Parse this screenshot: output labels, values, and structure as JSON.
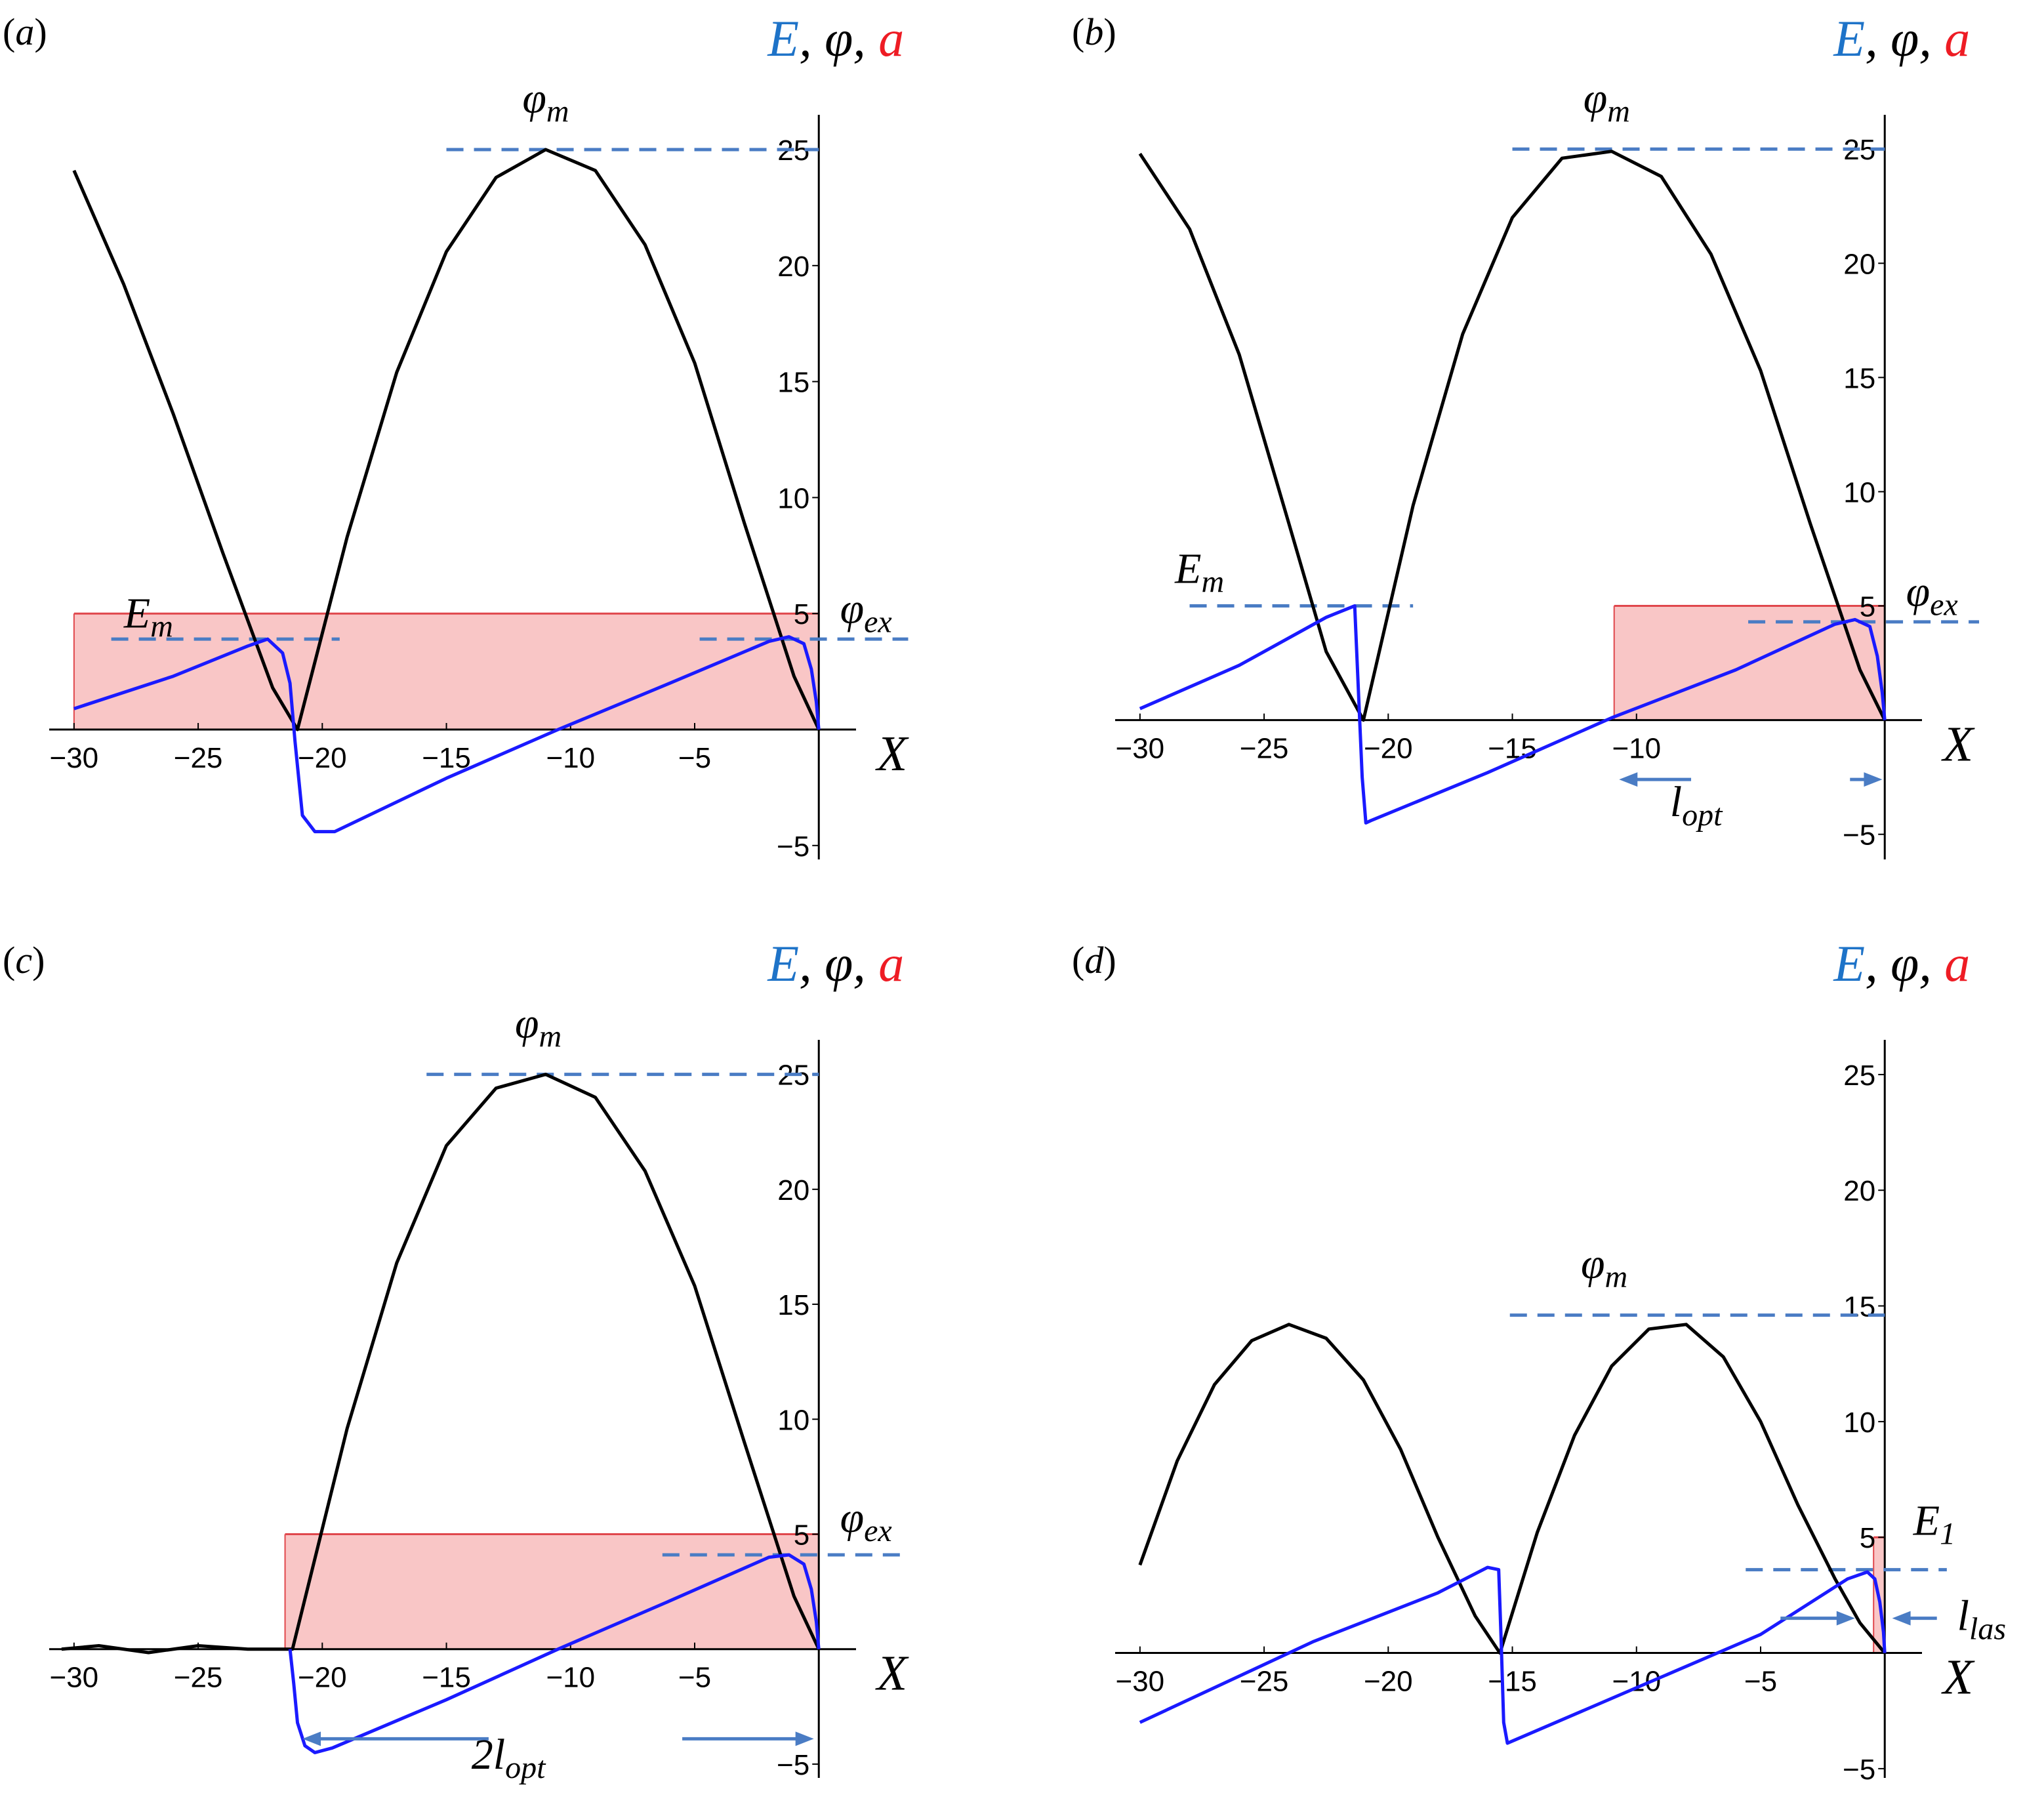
{
  "figure": {
    "colors": {
      "E": "#1a1aff",
      "phi": "#000000",
      "a_fill": "#f9c6c6",
      "a_line": "#e0474c",
      "dashed": "#4a7cc4",
      "ylabel_E": "#1e73c8",
      "ylabel_a": "#ee1c24"
    }
  },
  "chart_data": [
    {
      "panel": "(a)",
      "panel_letter": "a",
      "type": "line",
      "xlabel": "X",
      "ylabel_parts": [
        "E",
        ", φ, ",
        "a"
      ],
      "xlim": [
        -31,
        1.5
      ],
      "ylim": [
        -5.6,
        26.5
      ],
      "xticks": [
        -30,
        -25,
        -20,
        -15,
        -10,
        -5
      ],
      "yticks": [
        -5,
        5,
        10,
        15,
        20,
        25
      ],
      "series": [
        {
          "key": "phi",
          "x": [
            -30,
            -28,
            -26,
            -24,
            -22,
            -21,
            -19,
            -17,
            -15,
            -13,
            -11,
            -9,
            -7,
            -5,
            -3,
            -1,
            0
          ],
          "y": [
            24.1,
            19.2,
            13.6,
            7.6,
            1.8,
            0,
            8.3,
            15.4,
            20.6,
            23.8,
            25.0,
            24.1,
            20.9,
            15.8,
            8.9,
            2.3,
            0
          ]
        },
        {
          "key": "E",
          "x": [
            -30,
            -26,
            -23,
            -22.2,
            -21.6,
            -21.3,
            -21.1,
            -20.8,
            -20.3,
            -19.5,
            -15,
            -10.5,
            -6,
            -2,
            -1.2,
            -0.6,
            -0.3,
            -0.1,
            0
          ],
          "y": [
            0.9,
            2.3,
            3.6,
            3.9,
            3.3,
            2.0,
            -0.5,
            -3.7,
            -4.4,
            -4.4,
            -2.1,
            0,
            2.0,
            3.8,
            4.0,
            3.7,
            2.6,
            1.2,
            0
          ]
        },
        {
          "key": "a",
          "x0": -30,
          "x1": 0,
          "value": 5
        }
      ],
      "annotations": [
        {
          "text": "φ",
          "sub": "m",
          "x": -11.0,
          "y": 26.6
        },
        {
          "text": "E",
          "sub": "m",
          "x": -27.0,
          "y": 4.4
        },
        {
          "text": "φ",
          "sub": "ex",
          "x": 1.9,
          "y": 4.6
        }
      ],
      "reference_lines": [
        {
          "x0": -15,
          "x1": 0,
          "y": 25
        },
        {
          "x0": -28.5,
          "x1": -19.3,
          "y": 3.9
        },
        {
          "x0": -4.8,
          "x1": 3.6,
          "y": 3.9
        }
      ]
    },
    {
      "panel": "(b)",
      "panel_letter": "b",
      "type": "line",
      "xlabel": "X",
      "ylabel_parts": [
        "E",
        ", φ, ",
        "a"
      ],
      "xlim": [
        -31,
        1.5
      ],
      "ylim": [
        -6.1,
        26.5
      ],
      "xticks": [
        -30,
        -25,
        -20,
        -15,
        -10
      ],
      "yticks": [
        -5,
        5,
        10,
        15,
        20,
        25
      ],
      "series": [
        {
          "key": "phi",
          "x": [
            -30,
            -28,
            -26,
            -24,
            -22.5,
            -21,
            -19,
            -17,
            -15,
            -13,
            -11,
            -9,
            -7,
            -5,
            -3,
            -1,
            0
          ],
          "y": [
            24.8,
            21.5,
            16.0,
            8.6,
            3.0,
            0,
            9.4,
            16.9,
            22.0,
            24.6,
            24.9,
            23.8,
            20.4,
            15.3,
            8.6,
            2.2,
            0
          ]
        },
        {
          "key": "E",
          "x": [
            -30,
            -26,
            -22.5,
            -21.35,
            -21.25,
            -21.05,
            -20.9,
            -20.7,
            -16,
            -11,
            -6,
            -2,
            -1.2,
            -0.6,
            -0.3,
            -0.1,
            0
          ],
          "y": [
            0.5,
            2.4,
            4.5,
            5.0,
            2.5,
            -2.5,
            -4.5,
            -4.4,
            -2.3,
            0.1,
            2.2,
            4.2,
            4.4,
            4.1,
            2.8,
            1.2,
            0
          ]
        },
        {
          "key": "a",
          "x0": -10.9,
          "x1": 0,
          "value": 5
        }
      ],
      "annotations": [
        {
          "text": "φ",
          "sub": "m",
          "x": -11.2,
          "y": 26.6
        },
        {
          "text": "E",
          "sub": "m",
          "x": -27.6,
          "y": 6.0
        },
        {
          "text": "φ",
          "sub": "ex",
          "x": 1.9,
          "y": 5.0
        },
        {
          "text": "l",
          "sub": "opt",
          "x": -7.6,
          "y": -4.2
        }
      ],
      "reference_lines": [
        {
          "x0": -15,
          "x1": 0,
          "y": 25
        },
        {
          "x0": -28,
          "x1": -19,
          "y": 5.0
        },
        {
          "x0": -5.5,
          "x1": 3.8,
          "y": 4.3
        }
      ],
      "arrows": [
        {
          "x_from": -7.8,
          "x_to": -10.7,
          "y": -2.6
        },
        {
          "x_from": -1.4,
          "x_to": -0.1,
          "y": -2.6
        }
      ]
    },
    {
      "panel": "(c)",
      "panel_letter": "c",
      "type": "line",
      "xlabel": "X",
      "ylabel_parts": [
        "E",
        ", φ, ",
        "a"
      ],
      "xlim": [
        -31,
        1.5
      ],
      "ylim": [
        -5.6,
        26.5
      ],
      "xticks": [
        -30,
        -25,
        -20,
        -15,
        -10,
        -5
      ],
      "yticks": [
        -5,
        5,
        10,
        15,
        20,
        25
      ],
      "series": [
        {
          "key": "phi",
          "x": [
            -30.5,
            -29,
            -27,
            -25,
            -23,
            -21.5,
            -21.2,
            -19,
            -17,
            -15,
            -13,
            -11,
            -9,
            -7,
            -5,
            -3,
            -1,
            0
          ],
          "y": [
            0,
            0.15,
            -0.15,
            0.15,
            0,
            0,
            0,
            9.6,
            16.8,
            21.9,
            24.4,
            25.0,
            24.0,
            20.8,
            15.8,
            9.0,
            2.3,
            0
          ]
        },
        {
          "key": "E",
          "x": [
            -21.3,
            -21.15,
            -21.0,
            -20.7,
            -20.3,
            -19.6,
            -15,
            -10.5,
            -6,
            -2,
            -1.2,
            -0.6,
            -0.3,
            -0.1,
            0
          ],
          "y": [
            0,
            -1.5,
            -3.2,
            -4.2,
            -4.5,
            -4.3,
            -2.2,
            0,
            2.1,
            4.0,
            4.1,
            3.7,
            2.6,
            1.2,
            0
          ]
        },
        {
          "key": "a",
          "x0": -21.5,
          "x1": 0,
          "value": 5
        }
      ],
      "annotations": [
        {
          "text": "φ",
          "sub": "m",
          "x": -11.3,
          "y": 26.6
        },
        {
          "text": "φ",
          "sub": "ex",
          "x": 1.9,
          "y": 5.1
        },
        {
          "text": "2l",
          "sub": "opt",
          "x": -12.5,
          "y": -5.2
        }
      ],
      "reference_lines": [
        {
          "x0": -15.8,
          "x1": 0,
          "y": 25
        },
        {
          "x0": -6.3,
          "x1": 3.4,
          "y": 4.1
        }
      ],
      "arrows": [
        {
          "x_from": -13.3,
          "x_to": -20.8,
          "y": -3.9
        },
        {
          "x_from": -5.5,
          "x_to": -0.2,
          "y": -3.9
        }
      ]
    },
    {
      "panel": "(d)",
      "panel_letter": "d",
      "type": "line",
      "xlabel": "X",
      "ylabel_parts": [
        "E",
        ", φ, ",
        "a"
      ],
      "xlim": [
        -31,
        1.5
      ],
      "ylim": [
        -5.4,
        26.5
      ],
      "xticks": [
        -30,
        -25,
        -20,
        -15,
        -10,
        -5
      ],
      "yticks": [
        -5,
        5,
        10,
        15,
        20,
        25
      ],
      "series": [
        {
          "key": "phi",
          "x": [
            -30,
            -28.5,
            -27,
            -25.5,
            -24,
            -22.5,
            -21,
            -19.5,
            -18,
            -16.5,
            -15.5,
            -14,
            -12.5,
            -11,
            -9.5,
            -8,
            -6.5,
            -5,
            -3.5,
            -2,
            -1,
            0
          ],
          "y": [
            3.8,
            8.3,
            11.6,
            13.5,
            14.2,
            13.6,
            11.8,
            8.8,
            5.0,
            1.6,
            0,
            5.2,
            9.4,
            12.4,
            14.0,
            14.2,
            12.8,
            10.0,
            6.4,
            3.2,
            1.3,
            0
          ]
        },
        {
          "key": "E",
          "x": [
            -30,
            -23,
            -18,
            -16,
            -15.55,
            -15.45,
            -15.35,
            -15.2,
            -10,
            -5,
            -1.5,
            -0.7,
            -0.4,
            -0.2,
            -0.05,
            0
          ],
          "y": [
            -3.0,
            0.5,
            2.6,
            3.7,
            3.6,
            0.5,
            -3.0,
            -3.9,
            -1.5,
            0.8,
            3.2,
            3.5,
            3.2,
            2.2,
            0.9,
            0
          ]
        },
        {
          "key": "a",
          "x0": -0.45,
          "x1": 0,
          "value": 5
        }
      ],
      "annotations": [
        {
          "text": "φ",
          "sub": "m",
          "x": -11.3,
          "y": 16.2
        },
        {
          "text": "E",
          "sub": "1",
          "x": 2.0,
          "y": 5.1
        },
        {
          "text": "l",
          "sub": "las",
          "x": 3.9,
          "y": 1.0
        }
      ],
      "reference_lines": [
        {
          "x0": -15.1,
          "x1": 0,
          "y": 14.6
        },
        {
          "x0": -5.6,
          "x1": 2.5,
          "y": 3.6
        }
      ],
      "arrows": [
        {
          "x_from": -4.2,
          "x_to": -1.2,
          "y": 1.5
        },
        {
          "x_from": 2.1,
          "x_to": 0.3,
          "y": 1.5
        }
      ]
    }
  ]
}
